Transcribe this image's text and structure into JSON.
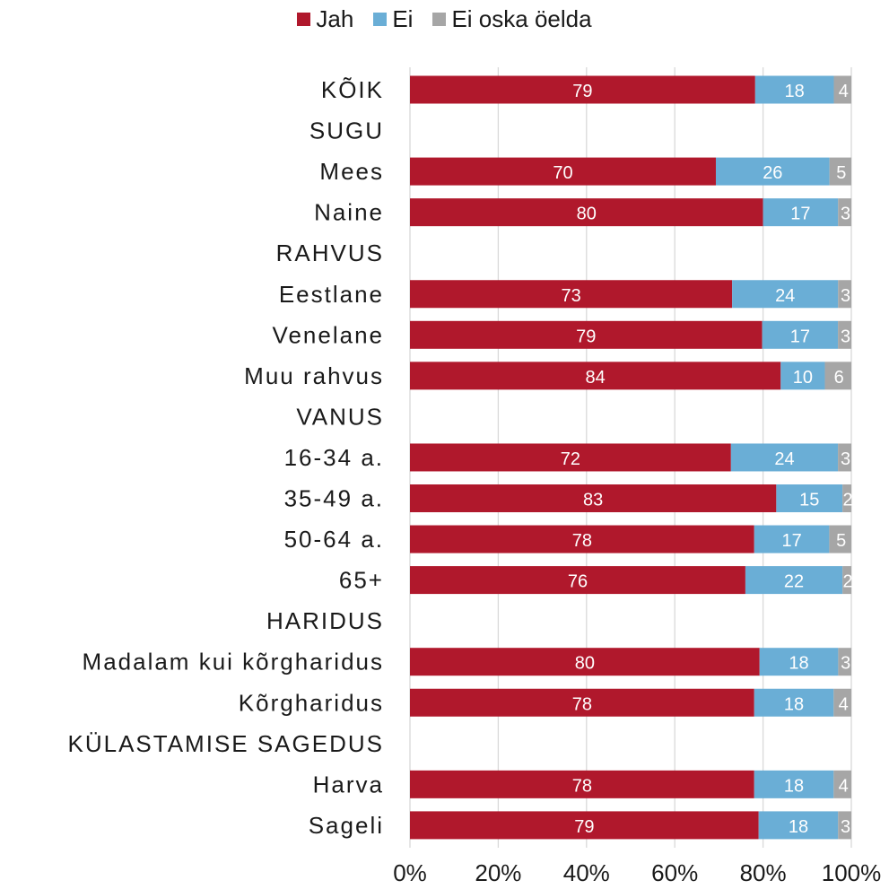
{
  "chart_data": {
    "type": "bar",
    "orientation": "horizontal",
    "stacked": "percent",
    "title": "",
    "xlabel": "",
    "ylabel": "",
    "xlim": [
      0,
      100
    ],
    "x_ticks": [
      "0%",
      "20%",
      "40%",
      "60%",
      "80%",
      "100%"
    ],
    "grid": true,
    "legend_position": "top",
    "categories": [
      "KÕIK",
      "SUGU",
      "Mees",
      "Naine",
      "RAHVUS",
      "Eestlane",
      "Venelane",
      "Muu rahvus",
      "VANUS",
      "16-34 a.",
      "35-49 a.",
      "50-64 a.",
      "65+",
      "HARIDUS",
      "Madalam kui kõrgharidus",
      "Kõrgharidus",
      "KÜLASTAMISE SAGEDUS",
      "Harva",
      "Sageli"
    ],
    "series": [
      {
        "name": "Jah",
        "color": "#b0182c",
        "values": [
          79,
          null,
          70,
          80,
          null,
          73,
          79,
          84,
          null,
          72,
          83,
          78,
          76,
          null,
          80,
          78,
          null,
          78,
          79
        ]
      },
      {
        "name": "Ei",
        "color": "#6aaed6",
        "values": [
          18,
          null,
          26,
          17,
          null,
          24,
          17,
          10,
          null,
          24,
          15,
          17,
          22,
          null,
          18,
          18,
          null,
          18,
          18
        ]
      },
      {
        "name": "Ei oska öelda",
        "color": "#a6a6a6",
        "values": [
          4,
          null,
          5,
          3,
          null,
          3,
          3,
          6,
          null,
          3,
          2,
          5,
          2,
          null,
          3,
          4,
          null,
          4,
          3
        ]
      }
    ]
  }
}
